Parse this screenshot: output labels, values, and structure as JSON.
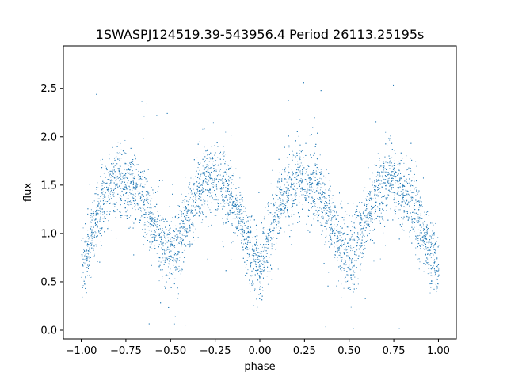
{
  "chart_data": {
    "type": "scatter",
    "title": "1SWASPJ124519.39-543956.4 Period 26113.25195s",
    "xlabel": "phase",
    "ylabel": "flux",
    "xlim": [
      -1.1,
      1.1
    ],
    "ylim": [
      -0.09,
      2.94
    ],
    "xticks": [
      -1.0,
      -0.75,
      -0.5,
      -0.25,
      0.0,
      0.25,
      0.5,
      0.75,
      1.0
    ],
    "xtick_labels": [
      "−1.00",
      "−0.75",
      "−0.50",
      "−0.25",
      "0.00",
      "0.25",
      "0.50",
      "0.75",
      "1.00"
    ],
    "yticks": [
      0.0,
      0.5,
      1.0,
      1.5,
      2.0,
      2.5
    ],
    "ytick_labels": [
      "0.0",
      "0.5",
      "1.0",
      "1.5",
      "2.0",
      "2.5"
    ],
    "grid": false,
    "marker_color": "#1f77b4",
    "series": [
      {
        "profile_phase": [
          -1.0,
          -0.95,
          -0.9,
          -0.85,
          -0.8,
          -0.75,
          -0.7,
          -0.65,
          -0.6,
          -0.55,
          -0.5,
          -0.45,
          -0.4,
          -0.35,
          -0.3,
          -0.25,
          -0.2,
          -0.15,
          -0.1,
          -0.05,
          0.0,
          0.05,
          0.1,
          0.15,
          0.2,
          0.25,
          0.3,
          0.35,
          0.4,
          0.45,
          0.5,
          0.55,
          0.6,
          0.65,
          0.7,
          0.75,
          0.8,
          0.85,
          0.9,
          0.95,
          1.0
        ],
        "profile_flux": [
          0.65,
          0.95,
          1.25,
          1.45,
          1.55,
          1.55,
          1.5,
          1.35,
          1.12,
          0.88,
          0.78,
          0.95,
          1.2,
          1.42,
          1.55,
          1.55,
          1.47,
          1.3,
          1.05,
          0.8,
          0.65,
          0.95,
          1.25,
          1.45,
          1.55,
          1.55,
          1.5,
          1.35,
          1.12,
          0.88,
          0.78,
          0.95,
          1.2,
          1.42,
          1.55,
          1.55,
          1.47,
          1.3,
          1.05,
          0.8,
          0.65
        ],
        "scatter_sigma": 0.18
      }
    ]
  }
}
